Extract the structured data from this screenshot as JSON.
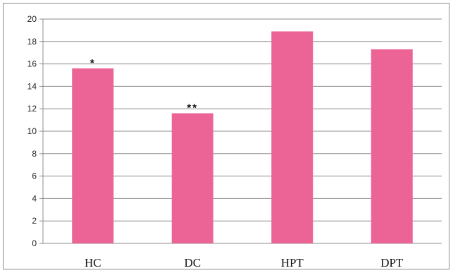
{
  "chart_data": {
    "type": "bar",
    "categories": [
      "HC",
      "DC",
      "HPT",
      "DPT"
    ],
    "values": [
      15.6,
      11.6,
      18.9,
      17.3
    ],
    "annotations": [
      "*",
      "**",
      "",
      ""
    ],
    "title": "",
    "xlabel": "",
    "ylabel": "",
    "ylim": [
      0,
      20
    ],
    "yticks": [
      "0",
      "2",
      "4",
      "6",
      "8",
      "10",
      "12",
      "14",
      "16",
      "18",
      "20"
    ],
    "grid": true,
    "legend": "none",
    "colors": {
      "bar": "#ec6495",
      "grid": "#8c8c8c",
      "axis": "#8c8c8c"
    }
  }
}
